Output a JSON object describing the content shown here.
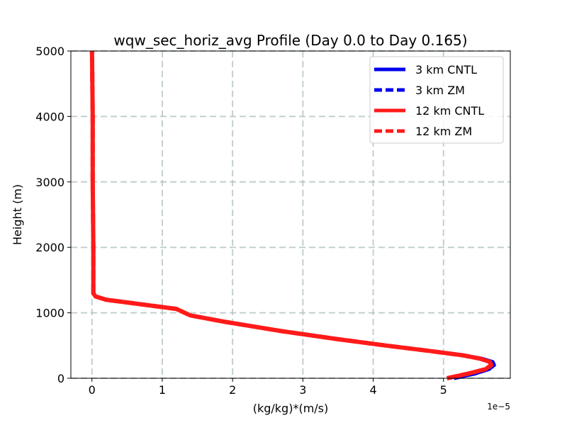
{
  "chart_data": {
    "type": "line",
    "title": "wqw_sec_horiz_avg Profile (Day 0.0 to Day 0.165)",
    "xlabel": "(kg/kg)*(m/s)",
    "ylabel": "Height (m)",
    "x_offset_label": "1e−5",
    "xlim": [
      -0.3,
      5.95
    ],
    "ylim": [
      0,
      5000
    ],
    "xticks": [
      0,
      1,
      2,
      3,
      4,
      5
    ],
    "xtick_labels": [
      "0",
      "1",
      "2",
      "3",
      "4",
      "5"
    ],
    "yticks": [
      0,
      1000,
      2000,
      3000,
      4000,
      5000
    ],
    "ytick_labels": [
      "0",
      "1000",
      "2000",
      "3000",
      "4000",
      "5000"
    ],
    "grid": true,
    "legend_position": "top-right",
    "series": [
      {
        "name": "3 km CNTL",
        "color": "#0000ee",
        "style": "solid",
        "x": [
          5.15,
          5.45,
          5.65,
          5.72,
          5.7,
          5.55,
          5.3,
          4.8,
          4.2,
          3.5,
          2.7,
          1.9,
          1.4,
          1.2,
          0.7,
          0.2,
          0.05,
          0.02,
          0.02,
          0.02,
          0.01,
          0.01,
          0.0
        ],
        "y": [
          0,
          70,
          140,
          200,
          250,
          300,
          350,
          420,
          500,
          600,
          720,
          860,
          960,
          1060,
          1130,
          1200,
          1250,
          1300,
          1500,
          2000,
          3000,
          4000,
          5000
        ]
      },
      {
        "name": "3 km ZM",
        "color": "#0000ee",
        "style": "dashed",
        "x": [
          5.15,
          5.45,
          5.65,
          5.72,
          5.7,
          5.55,
          5.3,
          4.8,
          4.2,
          3.5,
          2.7,
          1.9,
          1.4,
          1.2,
          0.7,
          0.2,
          0.05,
          0.02,
          0.02,
          0.02,
          0.01,
          0.01,
          0.0
        ],
        "y": [
          0,
          70,
          140,
          200,
          250,
          300,
          350,
          420,
          500,
          600,
          720,
          860,
          960,
          1060,
          1130,
          1200,
          1250,
          1300,
          1500,
          2000,
          3000,
          4000,
          5000
        ]
      },
      {
        "name": "12 km CNTL",
        "color": "#ff1a1a",
        "style": "solid",
        "x": [
          5.05,
          5.35,
          5.6,
          5.68,
          5.66,
          5.52,
          5.28,
          4.78,
          4.18,
          3.48,
          2.7,
          1.9,
          1.4,
          1.2,
          0.7,
          0.2,
          0.05,
          0.02,
          0.02,
          0.02,
          0.01,
          0.01,
          0.0
        ],
        "y": [
          0,
          70,
          140,
          200,
          250,
          300,
          350,
          420,
          500,
          600,
          720,
          860,
          960,
          1060,
          1130,
          1200,
          1250,
          1300,
          1500,
          2000,
          3000,
          4000,
          5000
        ]
      },
      {
        "name": "12 km ZM",
        "color": "#ff1a1a",
        "style": "dashed",
        "x": [
          5.05,
          5.35,
          5.6,
          5.68,
          5.66,
          5.52,
          5.28,
          4.78,
          4.18,
          3.48,
          2.7,
          1.9,
          1.4,
          1.2,
          0.7,
          0.2,
          0.05,
          0.02,
          0.02,
          0.02,
          0.01,
          0.01,
          0.0
        ],
        "y": [
          0,
          70,
          140,
          200,
          250,
          300,
          350,
          420,
          500,
          600,
          720,
          860,
          960,
          1060,
          1130,
          1200,
          1250,
          1300,
          1500,
          2000,
          3000,
          4000,
          5000
        ]
      }
    ]
  }
}
